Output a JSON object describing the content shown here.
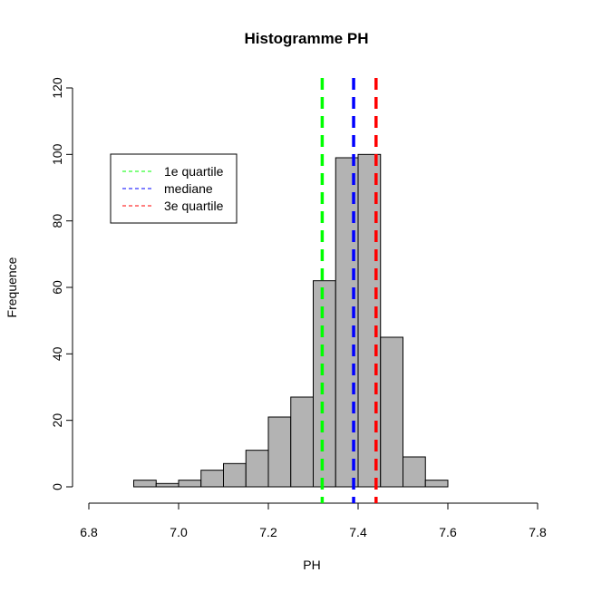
{
  "chart_data": {
    "type": "bar",
    "title": "Histogramme  PH",
    "xlabel": "PH",
    "ylabel": "Frequence",
    "xlim": [
      6.8,
      7.8
    ],
    "ylim": [
      0,
      120
    ],
    "x_ticks": [
      "6.8",
      "7.0",
      "7.2",
      "7.4",
      "7.6",
      "7.8"
    ],
    "y_ticks": [
      "0",
      "20",
      "40",
      "60",
      "80",
      "100",
      "120"
    ],
    "bin_width": 0.05,
    "bins": [
      {
        "start": 6.9,
        "end": 6.95,
        "count": 2
      },
      {
        "start": 6.95,
        "end": 7.0,
        "count": 1
      },
      {
        "start": 7.0,
        "end": 7.05,
        "count": 2
      },
      {
        "start": 7.05,
        "end": 7.1,
        "count": 5
      },
      {
        "start": 7.1,
        "end": 7.15,
        "count": 7
      },
      {
        "start": 7.15,
        "end": 7.2,
        "count": 11
      },
      {
        "start": 7.2,
        "end": 7.25,
        "count": 21
      },
      {
        "start": 7.25,
        "end": 7.3,
        "count": 27
      },
      {
        "start": 7.3,
        "end": 7.35,
        "count": 62
      },
      {
        "start": 7.35,
        "end": 7.4,
        "count": 99
      },
      {
        "start": 7.4,
        "end": 7.45,
        "count": 100
      },
      {
        "start": 7.45,
        "end": 7.5,
        "count": 45
      },
      {
        "start": 7.5,
        "end": 7.55,
        "count": 9
      },
      {
        "start": 7.55,
        "end": 7.6,
        "count": 2
      }
    ],
    "bar_color": "#b3b3b3",
    "reference_lines": [
      {
        "name": "1e quartile",
        "x": 7.32,
        "color": "#00ff00"
      },
      {
        "name": "mediane",
        "x": 7.39,
        "color": "#0000ff"
      },
      {
        "name": "3e quartile",
        "x": 7.44,
        "color": "#ff0000"
      }
    ],
    "legend_position": "top-left",
    "grid": false
  }
}
